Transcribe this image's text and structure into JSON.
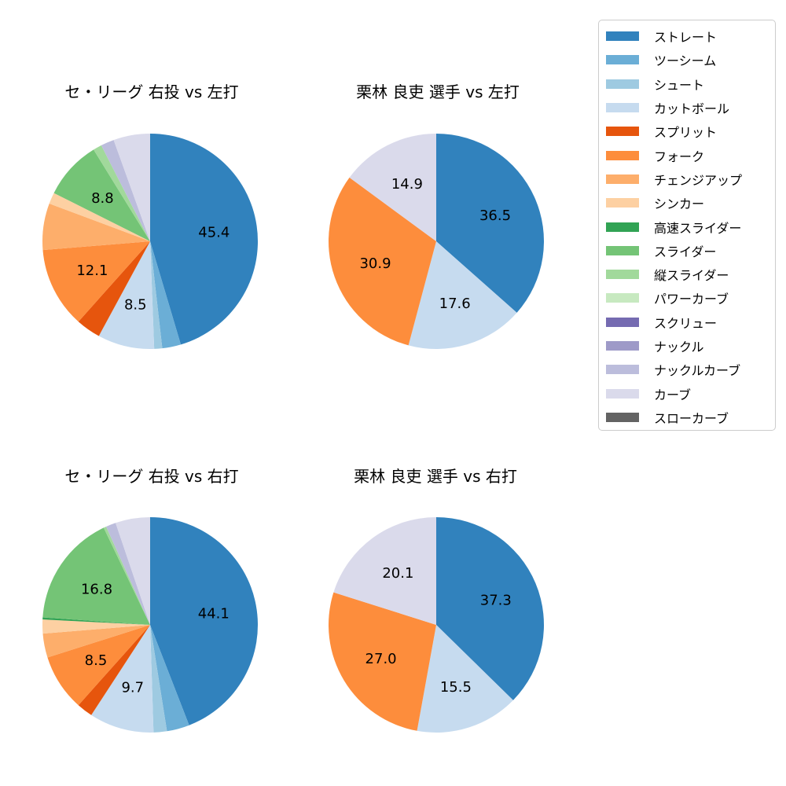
{
  "page": {
    "background": "#ffffff"
  },
  "legend": {
    "position": "right",
    "border_color": "#cccccc",
    "items": [
      {
        "label": "ストレート",
        "color": "#3182bd"
      },
      {
        "label": "ツーシーム",
        "color": "#6baed6"
      },
      {
        "label": "シュート",
        "color": "#9ecae1"
      },
      {
        "label": "カットボール",
        "color": "#c6dbef"
      },
      {
        "label": "スプリット",
        "color": "#e6550d"
      },
      {
        "label": "フォーク",
        "color": "#fd8d3c"
      },
      {
        "label": "チェンジアップ",
        "color": "#fdae6b"
      },
      {
        "label": "シンカー",
        "color": "#fdd0a2"
      },
      {
        "label": "高速スライダー",
        "color": "#31a354"
      },
      {
        "label": "スライダー",
        "color": "#74c476"
      },
      {
        "label": "縦スライダー",
        "color": "#a1d99b"
      },
      {
        "label": "パワーカーブ",
        "color": "#c7e9c0"
      },
      {
        "label": "スクリュー",
        "color": "#756bb1"
      },
      {
        "label": "ナックル",
        "color": "#9e9ac8"
      },
      {
        "label": "ナックルカーブ",
        "color": "#bcbddc"
      },
      {
        "label": "カーブ",
        "color": "#dadaeb"
      },
      {
        "label": "スローカーブ",
        "color": "#636363"
      }
    ]
  },
  "chart_data": [
    {
      "type": "pie",
      "title": "セ・リーグ 右投 vs 左打",
      "start_angle": "12-oclock",
      "direction": "clockwise",
      "label_distance": 0.6,
      "radius_px": 137,
      "slices": [
        {
          "name": "ストレート",
          "value": 45.4,
          "label": "45.4"
        },
        {
          "name": "ツーシーム",
          "value": 2.8
        },
        {
          "name": "シュート",
          "value": 1.2
        },
        {
          "name": "カットボール",
          "value": 8.5,
          "label": "8.5"
        },
        {
          "name": "スプリット",
          "value": 3.7
        },
        {
          "name": "フォーク",
          "value": 12.1,
          "label": "12.1"
        },
        {
          "name": "チェンジアップ",
          "value": 7.0
        },
        {
          "name": "シンカー",
          "value": 1.7
        },
        {
          "name": "スライダー",
          "value": 8.8,
          "label": "8.8"
        },
        {
          "name": "縦スライダー",
          "value": 1.3
        },
        {
          "name": "ナックルカーブ",
          "value": 2.0
        },
        {
          "name": "カーブ",
          "value": 5.5
        }
      ]
    },
    {
      "type": "pie",
      "title": "栗林 良吏 選手 vs 左打",
      "start_angle": "12-oclock",
      "direction": "clockwise",
      "label_distance": 0.6,
      "radius_px": 137,
      "slices": [
        {
          "name": "ストレート",
          "value": 36.5,
          "label": "36.5"
        },
        {
          "name": "カットボール",
          "value": 17.6,
          "label": "17.6"
        },
        {
          "name": "フォーク",
          "value": 30.9,
          "label": "30.9"
        },
        {
          "name": "カーブ",
          "value": 14.9,
          "label": "14.9"
        }
      ]
    },
    {
      "type": "pie",
      "title": "セ・リーグ 右投 vs 右打",
      "start_angle": "12-oclock",
      "direction": "clockwise",
      "label_distance": 0.6,
      "radius_px": 137,
      "slices": [
        {
          "name": "ストレート",
          "value": 44.1,
          "label": "44.1"
        },
        {
          "name": "ツーシーム",
          "value": 3.4
        },
        {
          "name": "シュート",
          "value": 2.0
        },
        {
          "name": "カットボール",
          "value": 9.7,
          "label": "9.7"
        },
        {
          "name": "スプリット",
          "value": 2.4
        },
        {
          "name": "フォーク",
          "value": 8.5,
          "label": "8.5"
        },
        {
          "name": "チェンジアップ",
          "value": 3.6
        },
        {
          "name": "シンカー",
          "value": 2.1
        },
        {
          "name": "高速スライダー",
          "value": 0.3
        },
        {
          "name": "スライダー",
          "value": 16.8,
          "label": "16.8"
        },
        {
          "name": "縦スライダー",
          "value": 0.4
        },
        {
          "name": "ナックルカーブ",
          "value": 1.5
        },
        {
          "name": "カーブ",
          "value": 5.2
        }
      ]
    },
    {
      "type": "pie",
      "title": "栗林 良吏 選手 vs 右打",
      "start_angle": "12-oclock",
      "direction": "clockwise",
      "label_distance": 0.6,
      "radius_px": 137,
      "slices": [
        {
          "name": "ストレート",
          "value": 37.3,
          "label": "37.3"
        },
        {
          "name": "カットボール",
          "value": 15.5,
          "label": "15.5"
        },
        {
          "name": "フォーク",
          "value": 27.0,
          "label": "27.0"
        },
        {
          "name": "カーブ",
          "value": 20.1,
          "label": "20.1"
        }
      ]
    }
  ]
}
